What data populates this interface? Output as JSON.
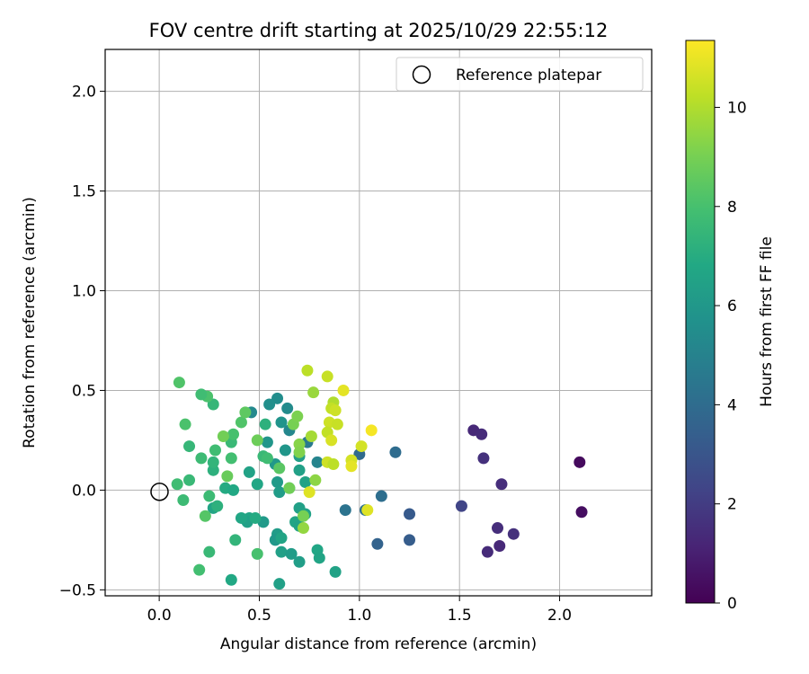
{
  "chart_data": {
    "type": "scatter",
    "title": "FOV centre drift starting at 2025/10/29 22:55:12",
    "xlabel": "Angular distance from reference (arcmin)",
    "ylabel": "Rotation from reference (arcmin)",
    "xlim": [
      -0.27,
      2.46
    ],
    "ylim": [
      -0.53,
      2.21
    ],
    "xticks": [
      "0.0",
      "0.5",
      "1.0",
      "1.5",
      "2.0"
    ],
    "yticks": [
      "−0.5",
      "0.0",
      "0.5",
      "1.0",
      "1.5",
      "2.0"
    ],
    "xtick_values": [
      0,
      0.5,
      1.0,
      1.5,
      2.0
    ],
    "ytick_values": [
      -0.5,
      0,
      0.5,
      1.0,
      1.5,
      2.0
    ],
    "grid": true,
    "legend": {
      "position": "top-right",
      "entries": [
        "Reference platepar"
      ]
    },
    "reference_point": {
      "x": 0.0,
      "y": 0.0,
      "label": "Reference platepar"
    },
    "colorbar": {
      "label": "Hours from first FF file",
      "min": 0,
      "max": 11.35,
      "ticks": [
        "0",
        "2",
        "4",
        "6",
        "8",
        "10"
      ],
      "tick_values": [
        0,
        2,
        4,
        6,
        8,
        10
      ],
      "colormap": "viridis"
    },
    "points": [
      {
        "x": 2.1,
        "y": 0.14,
        "h": 0.3
      },
      {
        "x": 2.11,
        "y": -0.11,
        "h": 0.4
      },
      {
        "x": 1.57,
        "y": 0.3,
        "h": 1.3
      },
      {
        "x": 1.61,
        "y": 0.28,
        "h": 1.4
      },
      {
        "x": 1.62,
        "y": 0.16,
        "h": 1.6
      },
      {
        "x": 1.71,
        "y": 0.03,
        "h": 1.5
      },
      {
        "x": 1.69,
        "y": -0.19,
        "h": 1.5
      },
      {
        "x": 1.77,
        "y": -0.22,
        "h": 1.6
      },
      {
        "x": 1.7,
        "y": -0.28,
        "h": 1.3
      },
      {
        "x": 1.64,
        "y": -0.31,
        "h": 1.4
      },
      {
        "x": 1.51,
        "y": -0.08,
        "h": 2.3
      },
      {
        "x": 1.25,
        "y": -0.12,
        "h": 3.2
      },
      {
        "x": 1.25,
        "y": -0.25,
        "h": 3.3
      },
      {
        "x": 1.18,
        "y": 0.19,
        "h": 4.0
      },
      {
        "x": 1.11,
        "y": -0.03,
        "h": 4.1
      },
      {
        "x": 1.09,
        "y": -0.27,
        "h": 3.6
      },
      {
        "x": 1.0,
        "y": 0.18,
        "h": 3.9
      },
      {
        "x": 1.03,
        "y": -0.1,
        "h": 4.2
      },
      {
        "x": 0.93,
        "y": -0.1,
        "h": 4.3
      },
      {
        "x": 0.74,
        "y": 0.24,
        "h": 4.6
      },
      {
        "x": 0.79,
        "y": 0.14,
        "h": 5.1
      },
      {
        "x": 0.64,
        "y": 0.41,
        "h": 5.4
      },
      {
        "x": 0.65,
        "y": 0.3,
        "h": 5.2
      },
      {
        "x": 0.59,
        "y": 0.46,
        "h": 5.5
      },
      {
        "x": 0.55,
        "y": 0.43,
        "h": 5.6
      },
      {
        "x": 0.61,
        "y": 0.34,
        "h": 5.8
      },
      {
        "x": 0.63,
        "y": 0.2,
        "h": 5.9
      },
      {
        "x": 0.54,
        "y": 0.24,
        "h": 5.9
      },
      {
        "x": 0.46,
        "y": 0.39,
        "h": 5.3
      },
      {
        "x": 0.58,
        "y": 0.13,
        "h": 6.0
      },
      {
        "x": 0.59,
        "y": 0.04,
        "h": 6.1
      },
      {
        "x": 0.6,
        "y": -0.01,
        "h": 6.2
      },
      {
        "x": 0.7,
        "y": 0.17,
        "h": 6.3
      },
      {
        "x": 0.7,
        "y": 0.1,
        "h": 6.4
      },
      {
        "x": 0.73,
        "y": 0.04,
        "h": 6.5
      },
      {
        "x": 0.65,
        "y": 0.01,
        "h": 6.8
      },
      {
        "x": 0.7,
        "y": -0.09,
        "h": 6.4
      },
      {
        "x": 0.73,
        "y": -0.12,
        "h": 6.5
      },
      {
        "x": 0.68,
        "y": -0.16,
        "h": 6.6
      },
      {
        "x": 0.7,
        "y": -0.18,
        "h": 6.5
      },
      {
        "x": 0.52,
        "y": -0.16,
        "h": 6.1
      },
      {
        "x": 0.59,
        "y": -0.22,
        "h": 6.2
      },
      {
        "x": 0.58,
        "y": -0.25,
        "h": 6.0
      },
      {
        "x": 0.61,
        "y": -0.24,
        "h": 6.6
      },
      {
        "x": 0.61,
        "y": -0.31,
        "h": 6.4
      },
      {
        "x": 0.66,
        "y": -0.32,
        "h": 6.2
      },
      {
        "x": 0.7,
        "y": -0.36,
        "h": 6.3
      },
      {
        "x": 0.79,
        "y": -0.3,
        "h": 6.7
      },
      {
        "x": 0.8,
        "y": -0.34,
        "h": 6.6
      },
      {
        "x": 0.88,
        "y": -0.41,
        "h": 6.5
      },
      {
        "x": 0.6,
        "y": -0.47,
        "h": 6.4
      },
      {
        "x": 0.36,
        "y": -0.45,
        "h": 6.8
      },
      {
        "x": 0.45,
        "y": -0.14,
        "h": 6.6
      },
      {
        "x": 0.44,
        "y": -0.16,
        "h": 6.4
      },
      {
        "x": 0.41,
        "y": -0.14,
        "h": 6.7
      },
      {
        "x": 0.48,
        "y": -0.14,
        "h": 6.9
      },
      {
        "x": 0.27,
        "y": -0.09,
        "h": 6.6
      },
      {
        "x": 0.29,
        "y": -0.08,
        "h": 7.2
      },
      {
        "x": 0.33,
        "y": 0.01,
        "h": 6.9
      },
      {
        "x": 0.37,
        "y": 0.0,
        "h": 6.8
      },
      {
        "x": 0.49,
        "y": 0.03,
        "h": 6.7
      },
      {
        "x": 0.45,
        "y": 0.09,
        "h": 6.5
      },
      {
        "x": 0.53,
        "y": 0.33,
        "h": 7.2
      },
      {
        "x": 0.52,
        "y": 0.17,
        "h": 7.6
      },
      {
        "x": 0.54,
        "y": 0.16,
        "h": 7.8
      },
      {
        "x": 0.6,
        "y": 0.11,
        "h": 8.4
      },
      {
        "x": 0.38,
        "y": -0.25,
        "h": 7.4
      },
      {
        "x": 0.25,
        "y": -0.31,
        "h": 7.6
      },
      {
        "x": 0.49,
        "y": -0.32,
        "h": 8.0
      },
      {
        "x": 0.2,
        "y": -0.4,
        "h": 7.9
      },
      {
        "x": 0.25,
        "y": -0.03,
        "h": 7.7
      },
      {
        "x": 0.23,
        "y": -0.13,
        "h": 8.3
      },
      {
        "x": 0.12,
        "y": -0.05,
        "h": 7.7
      },
      {
        "x": 0.09,
        "y": 0.03,
        "h": 7.8
      },
      {
        "x": 0.15,
        "y": 0.05,
        "h": 7.6
      },
      {
        "x": 0.21,
        "y": 0.16,
        "h": 7.7
      },
      {
        "x": 0.15,
        "y": 0.22,
        "h": 7.5
      },
      {
        "x": 0.27,
        "y": 0.1,
        "h": 7.2
      },
      {
        "x": 0.27,
        "y": 0.14,
        "h": 7.4
      },
      {
        "x": 0.28,
        "y": 0.2,
        "h": 7.8
      },
      {
        "x": 0.36,
        "y": 0.16,
        "h": 7.9
      },
      {
        "x": 0.36,
        "y": 0.24,
        "h": 7.6
      },
      {
        "x": 0.37,
        "y": 0.28,
        "h": 8.0
      },
      {
        "x": 0.41,
        "y": 0.34,
        "h": 8.2
      },
      {
        "x": 0.43,
        "y": 0.39,
        "h": 8.5
      },
      {
        "x": 0.13,
        "y": 0.33,
        "h": 8.1
      },
      {
        "x": 0.27,
        "y": 0.43,
        "h": 7.5
      },
      {
        "x": 0.24,
        "y": 0.47,
        "h": 8.1
      },
      {
        "x": 0.21,
        "y": 0.48,
        "h": 7.8
      },
      {
        "x": 0.1,
        "y": 0.54,
        "h": 8.2
      },
      {
        "x": 0.32,
        "y": 0.27,
        "h": 8.9
      },
      {
        "x": 0.34,
        "y": 0.07,
        "h": 8.7
      },
      {
        "x": 0.49,
        "y": 0.25,
        "h": 8.8
      },
      {
        "x": 0.65,
        "y": 0.01,
        "h": 8.9
      },
      {
        "x": 0.67,
        "y": 0.33,
        "h": 9.0
      },
      {
        "x": 0.69,
        "y": 0.37,
        "h": 9.1
      },
      {
        "x": 0.7,
        "y": 0.23,
        "h": 9.3
      },
      {
        "x": 0.7,
        "y": 0.19,
        "h": 9.2
      },
      {
        "x": 0.72,
        "y": -0.13,
        "h": 9.0
      },
      {
        "x": 0.72,
        "y": -0.19,
        "h": 9.5
      },
      {
        "x": 0.77,
        "y": 0.49,
        "h": 9.6
      },
      {
        "x": 0.76,
        "y": 0.27,
        "h": 9.8
      },
      {
        "x": 0.78,
        "y": 0.05,
        "h": 9.4
      },
      {
        "x": 0.74,
        "y": 0.6,
        "h": 10.2
      },
      {
        "x": 0.84,
        "y": 0.57,
        "h": 10.4
      },
      {
        "x": 0.87,
        "y": 0.44,
        "h": 10.0
      },
      {
        "x": 0.86,
        "y": 0.41,
        "h": 10.3
      },
      {
        "x": 0.88,
        "y": 0.4,
        "h": 10.5
      },
      {
        "x": 0.85,
        "y": 0.34,
        "h": 10.5
      },
      {
        "x": 0.89,
        "y": 0.33,
        "h": 10.4
      },
      {
        "x": 0.84,
        "y": 0.29,
        "h": 10.3
      },
      {
        "x": 0.86,
        "y": 0.25,
        "h": 10.7
      },
      {
        "x": 0.84,
        "y": 0.14,
        "h": 10.5
      },
      {
        "x": 0.87,
        "y": 0.13,
        "h": 10.2
      },
      {
        "x": 0.92,
        "y": 0.5,
        "h": 10.9
      },
      {
        "x": 0.75,
        "y": -0.01,
        "h": 10.8
      },
      {
        "x": 0.96,
        "y": 0.15,
        "h": 10.6
      },
      {
        "x": 0.96,
        "y": 0.12,
        "h": 10.9
      },
      {
        "x": 1.01,
        "y": 0.22,
        "h": 10.6
      },
      {
        "x": 1.04,
        "y": -0.1,
        "h": 10.8
      },
      {
        "x": 1.06,
        "y": 0.3,
        "h": 11.2
      }
    ]
  }
}
